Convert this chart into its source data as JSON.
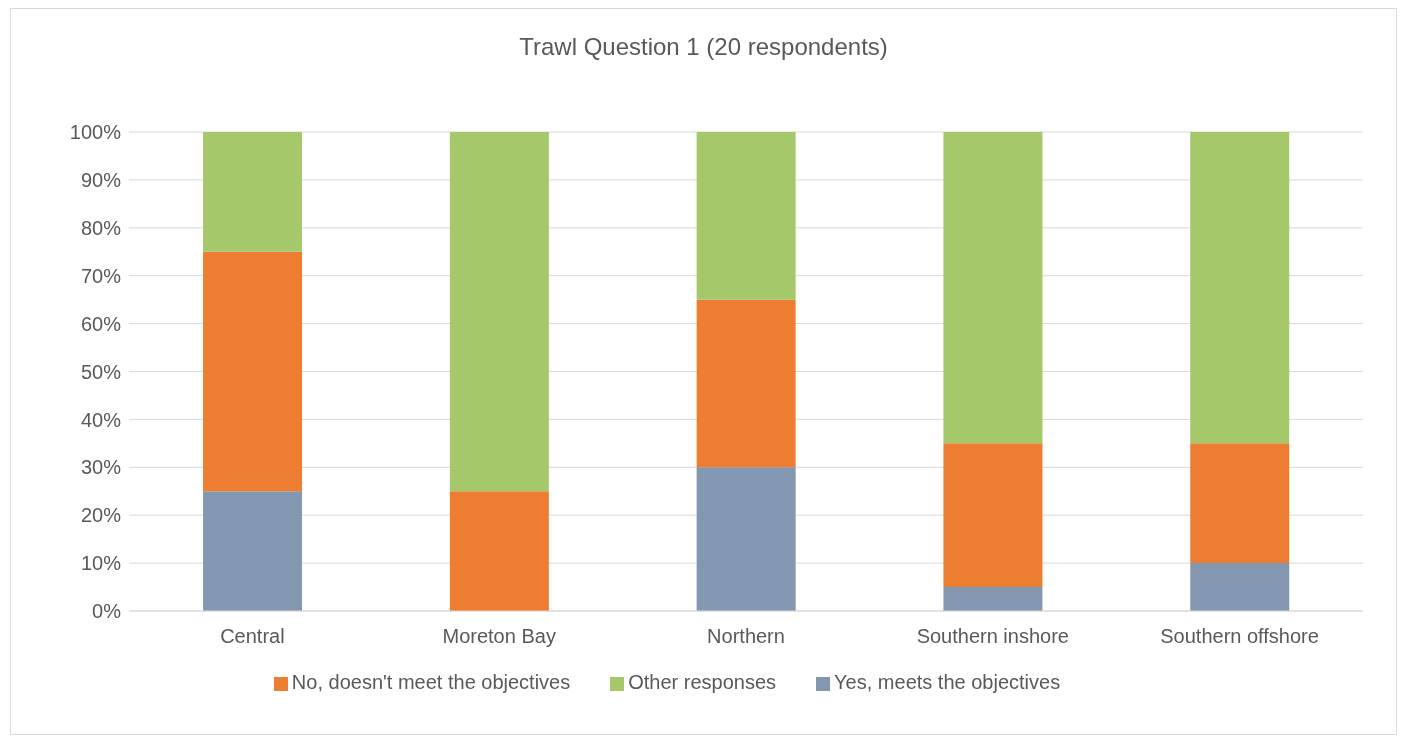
{
  "chart_data": {
    "type": "bar",
    "title": "Trawl Question 1 (20 respondents)",
    "stacked": true,
    "categories": [
      "Central",
      "Moreton Bay",
      "Northern",
      "Southern inshore",
      "Southern offshore"
    ],
    "series": [
      {
        "name": "Yes, meets the objectives",
        "color": "#8497b0",
        "values": [
          25,
          0,
          30,
          5,
          10
        ]
      },
      {
        "name": "No, doesn't meet the objectives",
        "color": "#ed7d31",
        "values": [
          50,
          25,
          35,
          30,
          25
        ]
      },
      {
        "name": "Other responses",
        "color": "#a5c86a",
        "values": [
          25,
          75,
          35,
          65,
          65
        ]
      }
    ],
    "ylim": [
      0,
      100
    ],
    "yticks": [
      {
        "value": 0,
        "label": "0%"
      },
      {
        "value": 10,
        "label": "10%"
      },
      {
        "value": 20,
        "label": "20%"
      },
      {
        "value": 30,
        "label": "30%"
      },
      {
        "value": 40,
        "label": "40%"
      },
      {
        "value": 50,
        "label": "50%"
      },
      {
        "value": 60,
        "label": "60%"
      },
      {
        "value": 70,
        "label": "70%"
      },
      {
        "value": 80,
        "label": "80%"
      },
      {
        "value": 90,
        "label": "90%"
      },
      {
        "value": 100,
        "label": "100%"
      }
    ],
    "grid": "y",
    "legend": "bottom"
  }
}
